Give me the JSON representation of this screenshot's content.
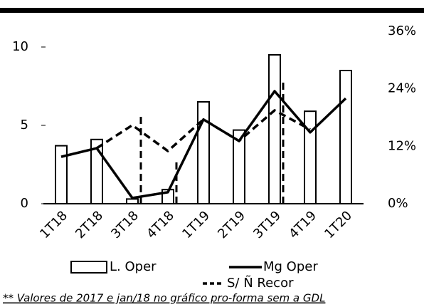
{
  "chart_data": {
    "type": "bar",
    "categories": [
      "1T18",
      "2T18",
      "3T18",
      "4T18",
      "1T19",
      "2T19",
      "3T19",
      "4T19",
      "1T20"
    ],
    "series": [
      {
        "name": "L. Oper",
        "type": "bar",
        "color": "#ffffff",
        "values": [
          3.7,
          4.1,
          0.3,
          0.9,
          6.5,
          4.7,
          9.5,
          5.9,
          8.5
        ]
      },
      {
        "name": "Mg Oper",
        "type": "line",
        "axis": "y2",
        "color": "#000000",
        "values": [
          9.8,
          11.6,
          1.2,
          2.4,
          17.6,
          13.1,
          23.5,
          14.9,
          22.0
        ]
      },
      {
        "name": "S/ Ñ Recor",
        "type": "line",
        "dashed": true,
        "axis": "y2",
        "color": "#000000",
        "values": [
          null,
          11.6,
          16.4,
          11.0,
          17.6,
          13.1,
          19.5,
          15.5,
          null
        ],
        "bar_values": [
          null,
          null,
          5.7,
          2.7,
          null,
          null,
          8.0,
          null,
          null
        ]
      }
    ],
    "ylim": [
      0,
      11
    ],
    "yticks": [
      0,
      5,
      10
    ],
    "y2lim": [
      0,
      36
    ],
    "y2ticks": [
      {
        "value": 0,
        "label": "0%"
      },
      {
        "value": 12,
        "label": "12%"
      },
      {
        "value": 24,
        "label": "24%"
      },
      {
        "value": 36,
        "label": "36%"
      }
    ],
    "footnote": "** Valores de 2017 e jan/18 no gráfico pro-forma sem a GDL"
  }
}
